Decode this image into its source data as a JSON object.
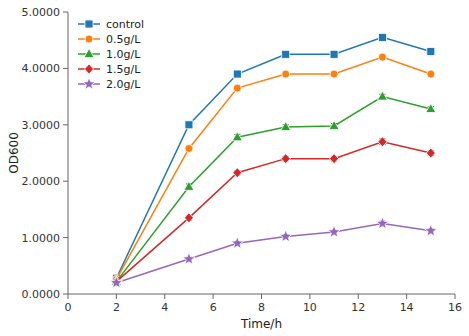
{
  "chart_data": {
    "type": "line",
    "xlabel": "Time/h",
    "ylabel": "OD600",
    "xlim": [
      0,
      16
    ],
    "ylim": [
      0,
      5.0
    ],
    "xticks": [
      0,
      2,
      4,
      6,
      8,
      10,
      12,
      14,
      16
    ],
    "yticks": [
      {
        "value": 0.0,
        "label": "0.0000"
      },
      {
        "value": 1.0,
        "label": "1.0000"
      },
      {
        "value": 2.0,
        "label": "2.0000"
      },
      {
        "value": 3.0,
        "label": "3.0000"
      },
      {
        "value": 4.0,
        "label": "4.0000"
      },
      {
        "value": 5.0,
        "label": "5.0000"
      }
    ],
    "grid": false,
    "legend": "upper left",
    "x": [
      2,
      5,
      7,
      9,
      11,
      13,
      15
    ],
    "series": [
      {
        "name": "control",
        "values": [
          0.28,
          3.0,
          3.9,
          4.25,
          4.25,
          4.55,
          4.3
        ],
        "yerr": [
          0.02,
          0.05,
          0.05,
          0.04,
          0.04,
          0.05,
          0.04
        ],
        "marker": "square"
      },
      {
        "name": "0.5g/L",
        "values": [
          0.26,
          2.58,
          3.65,
          3.9,
          3.9,
          4.2,
          3.9
        ],
        "yerr": [
          0.02,
          0.05,
          0.05,
          0.04,
          0.04,
          0.04,
          0.04
        ],
        "marker": "circle"
      },
      {
        "name": "1.0g/L",
        "values": [
          0.22,
          1.9,
          2.78,
          2.96,
          2.98,
          3.5,
          3.28
        ],
        "yerr": [
          0.02,
          0.05,
          0.05,
          0.04,
          0.04,
          0.04,
          0.04
        ],
        "marker": "triangle"
      },
      {
        "name": "1.5g/L",
        "values": [
          0.22,
          1.35,
          2.15,
          2.4,
          2.4,
          2.7,
          2.5
        ],
        "yerr": [
          0.02,
          0.04,
          0.04,
          0.04,
          0.04,
          0.05,
          0.04
        ],
        "marker": "diamond"
      },
      {
        "name": "2.0g/L",
        "values": [
          0.2,
          0.62,
          0.9,
          1.02,
          1.1,
          1.25,
          1.12
        ],
        "yerr": [
          0.02,
          0.03,
          0.03,
          0.03,
          0.03,
          0.04,
          0.04
        ],
        "marker": "star"
      }
    ]
  }
}
